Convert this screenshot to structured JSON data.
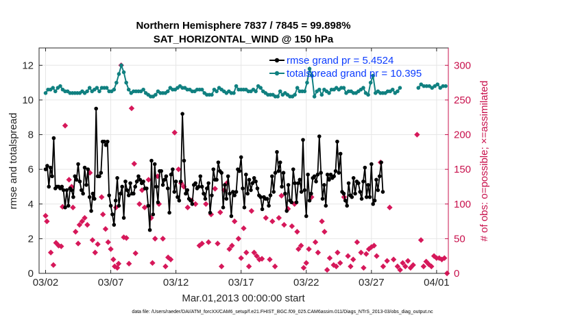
{
  "chart_data": {
    "type": "line",
    "title_line1": "Northern Hemisphere 7837 / 7845 = 99.898%",
    "title_line2": "SAT_HORIZONTAL_WIND @ 150 hPa",
    "xlabel": "Mar.01,2013 00:00:00 start",
    "ylabel_left": "rmse and totalspread",
    "ylabel_right": "# of obs: o=possible; ×=assimilated",
    "footnote": "data file: /Users/raeder/DAI/ATM_forcXX/CAM6_setup/f.e21.FHIST_BGC.f09_025.CAM6assim.011/Diags_NTrS_2013-03/obs_diag_output.nc",
    "xlim": [
      0.5,
      31.9
    ],
    "ylim_left": [
      0,
      13
    ],
    "ylim_right": [
      0,
      325
    ],
    "x_ticks": [
      1,
      6,
      11,
      16,
      21,
      26,
      31
    ],
    "x_tick_labels": [
      "03/02",
      "03/07",
      "03/12",
      "03/17",
      "03/22",
      "03/27",
      "04/01"
    ],
    "y_ticks_left": [
      0,
      2,
      4,
      6,
      8,
      10,
      12
    ],
    "y_ticks_right": [
      0,
      50,
      100,
      150,
      200,
      250,
      300
    ],
    "colors": {
      "rmse": "#000000",
      "spread": "#108080",
      "obs": "#d6185a",
      "legend_text": "#0b3bff",
      "right_axis": "#c8104c",
      "grid": "#e6e6e6"
    },
    "series": [
      {
        "name": "rmse",
        "legend": "rmse grand pr = 5.4524",
        "axis": "left",
        "values": [
          6.0,
          6.2,
          5.0,
          6.1,
          5.6,
          7.8,
          4.9,
          5.0,
          5.0,
          4.9,
          5.0,
          4.8,
          3.8,
          4.8,
          3.9,
          4.9,
          4.8,
          4.4,
          5.6,
          5.4,
          6.3,
          5.3,
          4.8,
          4.6,
          6.1,
          5.1,
          6.0,
          4.4,
          3.6,
          4.6,
          4.3,
          9.5,
          5.6,
          5.6,
          5.8,
          7.6,
          7.6,
          7.4,
          7.6,
          4.5,
          3.9,
          3.4,
          2.8,
          4.2,
          5.5,
          3.9,
          4.6,
          5.0,
          3.2,
          5.3,
          4.8,
          4.5,
          5.2,
          4.6,
          4.6,
          5.0,
          5.3,
          5.6,
          5.4,
          5.2,
          5.3,
          4.9,
          4.9,
          3.9,
          2.5,
          6.5,
          3.4,
          6.3,
          5.0,
          4.1,
          5.9,
          5.9,
          5.1,
          5.4,
          5.6,
          4.9,
          3.5,
          5.7,
          6.0,
          4.7,
          5.3,
          4.4,
          4.2,
          5.3,
          9.2,
          6.5,
          4.6,
          4.8,
          4.3,
          4.2,
          4.0,
          5.1,
          5.2,
          4.9,
          5.0,
          5.6,
          5.0,
          4.6,
          4.3,
          4.9,
          5.2,
          3.5,
          4.5,
          6.0,
          5.4,
          5.4,
          6.4,
          5.9,
          5.8,
          3.8,
          5.1,
          4.3,
          5.6,
          4.6,
          3.3,
          4.7,
          4.5,
          4.7,
          6.0,
          5.9,
          6.7,
          4.9,
          3.8,
          5.7,
          4.6,
          5.4,
          4.8,
          5.2,
          5.5,
          5.3,
          4.9,
          4.5,
          4.4,
          3.7,
          4.4,
          4.3,
          4.3,
          3.9,
          4.5,
          5.6,
          4.7,
          5.8,
          7.0,
          5.9,
          6.4,
          5.0,
          5.8,
          4.6,
          3.6,
          5.1,
          4.2,
          4.1,
          6.0,
          5.2,
          4.1,
          5.2,
          5.4,
          4.7,
          7.7,
          4.8,
          3.3,
          5.7,
          4.2,
          4.6,
          5.5,
          5.6,
          5.3,
          5.7,
          7.9,
          5.8,
          4.3,
          5.1,
          3.9,
          5.7,
          5.4,
          5.7,
          5.5,
          5.6,
          5.9,
          7.6,
          5.8,
          6.9,
          4.7,
          4.6,
          4.2,
          3.9,
          5.2,
          4.5,
          4.4,
          5.5,
          4.6,
          5.3,
          5.2,
          4.7,
          4.3,
          5.3,
          6.1,
          4.4,
          5.1,
          4.4,
          6.3,
          4.0,
          4.2,
          5.4,
          4.8,
          5.6,
          6.4,
          4.7
        ],
        "x_start": 1.0,
        "x_step": 0.125,
        "note_values": "rmse values at 6-hourly points (sampled)"
      },
      {
        "name": "totalspread",
        "legend": "totalspread grand pr = 10.395",
        "axis": "left",
        "values": [
          10.4,
          10.6,
          10.6,
          10.7,
          10.5,
          10.7,
          10.8,
          10.6,
          10.5,
          10.5,
          10.4,
          10.4,
          10.4,
          10.4,
          10.4,
          10.5,
          10.4,
          10.5,
          10.7,
          10.5,
          10.6,
          10.7,
          10.5,
          10.7,
          10.7,
          10.7,
          10.5,
          10.5,
          10.6,
          11.0,
          11.5,
          12.0,
          11.6,
          11.0,
          10.6,
          10.4,
          10.5,
          10.5,
          10.5,
          10.5,
          10.6,
          10.4,
          10.3,
          10.2,
          10.2,
          10.3,
          10.5,
          10.4,
          10.4,
          10.4,
          10.5,
          10.7,
          10.6,
          10.6,
          10.7,
          10.8,
          10.7,
          10.7,
          10.6,
          10.6,
          10.5,
          10.5,
          10.6,
          10.6,
          10.6,
          10.4,
          10.3,
          10.3,
          10.3,
          10.6,
          10.5,
          10.7,
          10.6,
          10.5,
          10.4,
          10.5,
          10.4,
          10.4,
          10.8,
          10.6,
          10.6,
          10.6,
          10.6,
          10.5,
          10.5,
          10.6,
          10.5,
          10.8,
          10.7,
          10.5,
          10.4,
          10.3,
          10.3,
          10.3,
          10.2,
          10.2,
          10.5,
          10.3,
          10.4,
          10.3,
          10.2,
          10.2,
          10.3,
          10.7,
          10.5,
          10.5,
          10.5,
          11.0,
          11.8,
          11.4,
          10.2,
          10.5,
          10.6,
          10.3,
          10.6,
          10.5,
          10.4,
          10.6,
          10.6,
          10.7,
          10.6,
          10.7,
          10.7,
          10.4,
          10.5,
          10.5,
          10.4,
          10.4,
          10.5,
          10.6,
          10.7,
          10.4,
          10.3,
          11.0,
          11.4,
          10.4,
          10.5,
          10.4,
          10.4,
          10.4,
          10.5,
          10.5,
          10.6,
          10.4,
          10.5,
          10.7
        ],
        "x_start": 1.0,
        "x_step": 0.1875,
        "gap_after_index": 135,
        "tail_values": [
          10.7,
          10.9,
          10.8,
          10.8,
          10.8,
          10.7,
          10.8,
          10.9,
          10.7,
          10.8,
          10.8
        ],
        "tail_x_start": 29.6,
        "tail_x_step": 0.21
      },
      {
        "name": "obs",
        "legend": "",
        "axis": "right",
        "points": [
          [
            1.0,
            83
          ],
          [
            1.1,
            75
          ],
          [
            1.4,
            30
          ],
          [
            1.6,
            12
          ],
          [
            1.8,
            44
          ],
          [
            2.0,
            40
          ],
          [
            2.2,
            39
          ],
          [
            2.3,
            96
          ],
          [
            2.5,
            213
          ],
          [
            2.8,
            135
          ],
          [
            3.0,
            125
          ],
          [
            3.1,
            95
          ],
          [
            3.3,
            60
          ],
          [
            3.5,
            43
          ],
          [
            3.6,
            70
          ],
          [
            3.8,
            75
          ],
          [
            4.0,
            80
          ],
          [
            4.2,
            70
          ],
          [
            4.4,
            145
          ],
          [
            4.6,
            48
          ],
          [
            4.8,
            30
          ],
          [
            5.0,
            42
          ],
          [
            5.3,
            110
          ],
          [
            5.4,
            85
          ],
          [
            5.6,
            64
          ],
          [
            5.8,
            45
          ],
          [
            6.0,
            35
          ],
          [
            6.2,
            20
          ],
          [
            6.3,
            10
          ],
          [
            6.4,
            95
          ],
          [
            6.5,
            8
          ],
          [
            6.6,
            14
          ],
          [
            6.8,
            300
          ],
          [
            7.0,
            52
          ],
          [
            7.2,
            51
          ],
          [
            7.4,
            14
          ],
          [
            7.6,
            238
          ],
          [
            7.8,
            158
          ],
          [
            7.9,
            29
          ],
          [
            8.2,
            100
          ],
          [
            8.4,
            120
          ],
          [
            8.6,
            95
          ],
          [
            8.9,
            135
          ],
          [
            9.1,
            80
          ],
          [
            9.2,
            15
          ],
          [
            9.4,
            50
          ],
          [
            9.6,
            140
          ],
          [
            9.7,
            100
          ],
          [
            10.0,
            50
          ],
          [
            10.2,
            10
          ],
          [
            10.4,
            23
          ],
          [
            10.6,
            20
          ],
          [
            10.9,
            203
          ],
          [
            11.2,
            150
          ],
          [
            11.4,
            130
          ],
          [
            11.6,
            125
          ],
          [
            11.9,
            95
          ],
          [
            12.2,
            105
          ],
          [
            12.5,
            100
          ],
          [
            12.8,
            40
          ],
          [
            13.0,
            43
          ],
          [
            13.3,
            100
          ],
          [
            13.5,
            45
          ],
          [
            13.7,
            85
          ],
          [
            14.0,
            122
          ],
          [
            14.2,
            43
          ],
          [
            14.4,
            88
          ],
          [
            14.5,
            10
          ],
          [
            14.7,
            120
          ],
          [
            14.9,
            130
          ],
          [
            15.1,
            35
          ],
          [
            15.3,
            40
          ],
          [
            15.5,
            75
          ],
          [
            15.8,
            50
          ],
          [
            16.0,
            22
          ],
          [
            16.2,
            65
          ],
          [
            16.4,
            30
          ],
          [
            16.6,
            10
          ],
          [
            16.8,
            90
          ],
          [
            17.0,
            30
          ],
          [
            17.2,
            25
          ],
          [
            17.4,
            20
          ],
          [
            17.6,
            21
          ],
          [
            17.9,
            80
          ],
          [
            18.2,
            20
          ],
          [
            18.4,
            75
          ],
          [
            18.6,
            10
          ],
          [
            18.9,
            80
          ],
          [
            19.1,
            112
          ],
          [
            19.3,
            70
          ],
          [
            19.6,
            93
          ],
          [
            19.9,
            68
          ],
          [
            20.1,
            100
          ],
          [
            20.3,
            60
          ],
          [
            20.4,
            35
          ],
          [
            20.6,
            40
          ],
          [
            20.8,
            8
          ],
          [
            21.0,
            15
          ],
          [
            21.2,
            35
          ],
          [
            21.4,
            110
          ],
          [
            21.7,
            45
          ],
          [
            21.9,
            30
          ],
          [
            22.2,
            75
          ],
          [
            22.4,
            60
          ],
          [
            22.6,
            5
          ],
          [
            22.8,
            22
          ],
          [
            23.1,
            12
          ],
          [
            23.3,
            10
          ],
          [
            23.4,
            30
          ],
          [
            23.6,
            15
          ],
          [
            23.9,
            110
          ],
          [
            24.2,
            25
          ],
          [
            24.4,
            10
          ],
          [
            24.6,
            20
          ],
          [
            24.9,
            45
          ],
          [
            25.2,
            30
          ],
          [
            25.4,
            8
          ],
          [
            25.6,
            28
          ],
          [
            25.8,
            35
          ],
          [
            26.0,
            38
          ],
          [
            26.2,
            40
          ],
          [
            26.4,
            25
          ],
          [
            26.7,
            160
          ],
          [
            26.9,
            10
          ],
          [
            27.2,
            18
          ],
          [
            27.4,
            95
          ],
          [
            27.7,
            20
          ],
          [
            28.0,
            10
          ],
          [
            28.2,
            5
          ],
          [
            28.4,
            15
          ],
          [
            28.6,
            10
          ],
          [
            28.8,
            18
          ],
          [
            29.0,
            8
          ],
          [
            29.2,
            12
          ],
          [
            29.5,
            200
          ],
          [
            29.8,
            48
          ],
          [
            30.0,
            10
          ],
          [
            30.2,
            17
          ],
          [
            30.4,
            13
          ],
          [
            30.6,
            10
          ],
          [
            30.8,
            25
          ],
          [
            31.0,
            22
          ],
          [
            31.2,
            22
          ],
          [
            31.4,
            20
          ],
          [
            31.6,
            22
          ],
          [
            31.8,
            0
          ]
        ]
      }
    ]
  }
}
